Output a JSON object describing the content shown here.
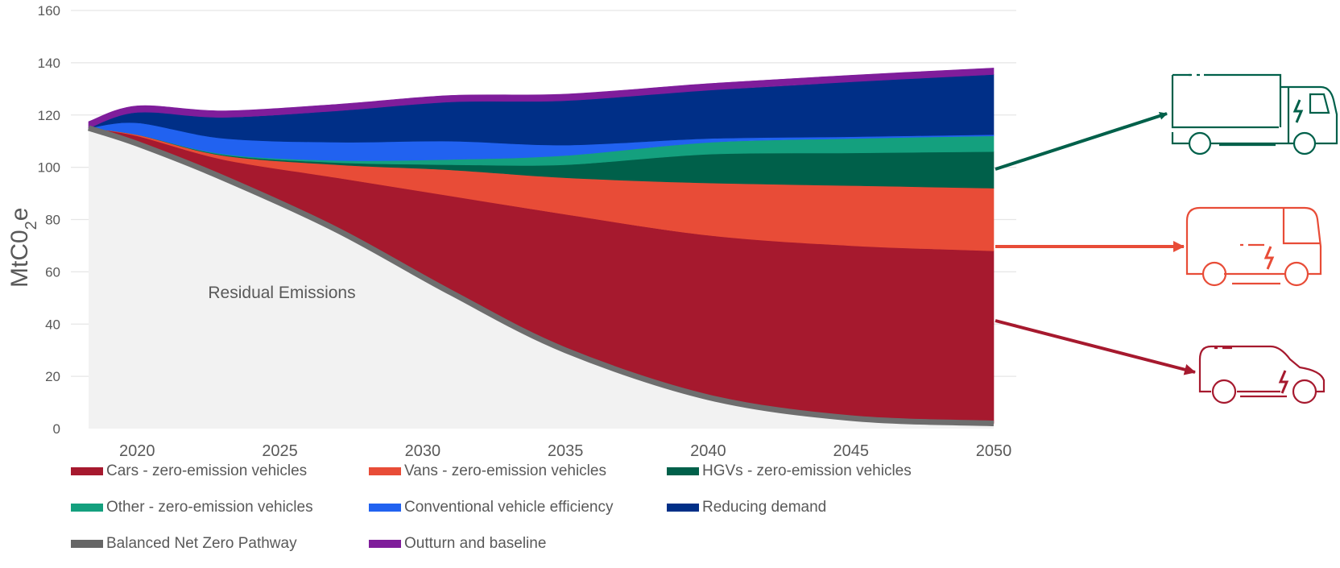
{
  "chart_data": {
    "type": "area",
    "stacked": true,
    "ylabel_main": "MtC0",
    "ylabel_sub": "2",
    "ylabel_tail": "e",
    "ylim": [
      0,
      160
    ],
    "xlim": [
      2018.3,
      2050
    ],
    "yticks": [
      0,
      20,
      40,
      60,
      80,
      100,
      120,
      140,
      160
    ],
    "xticks": [
      2020,
      2025,
      2030,
      2035,
      2040,
      2045,
      2050
    ],
    "grid": true,
    "legend_position": "bottom",
    "annotation": "Residual Emissions",
    "x": [
      2018.3,
      2020,
      2023,
      2027,
      2031,
      2035,
      2040,
      2045,
      2050
    ],
    "pathway": [
      115,
      109,
      96,
      76,
      52,
      30,
      12,
      4,
      2
    ],
    "series": [
      {
        "name": "Cars - zero-emission vehicles",
        "color": "#A6192E",
        "values": [
          0,
          3,
          7,
          20,
          37,
          52,
          62,
          66,
          66
        ]
      },
      {
        "name": "Vans - zero-emission vehicles",
        "color": "#E84C37",
        "values": [
          0,
          0.5,
          1.5,
          5,
          10,
          14,
          20,
          23,
          24
        ]
      },
      {
        "name": "HGVs - zero-emission vehicles",
        "color": "#00604A",
        "values": [
          0,
          0,
          0.3,
          0.8,
          2,
          5,
          11,
          12.5,
          14
        ]
      },
      {
        "name": "Other - zero-emission vehicles",
        "color": "#14A07E",
        "values": [
          0,
          0,
          0.3,
          0.8,
          2,
          3.5,
          4.5,
          5.5,
          6
        ]
      },
      {
        "name": "Conventional vehicle efficiency",
        "color": "#2162F0",
        "values": [
          0,
          4.5,
          6,
          7,
          7,
          4,
          1.5,
          0.7,
          0.5
        ]
      },
      {
        "name": "Reducing demand",
        "color": "#002F87",
        "values": [
          0,
          4,
          8,
          12,
          15,
          17,
          18.5,
          21,
          23
        ]
      },
      {
        "name": "Outturn and baseline",
        "color": "#7F1D9B",
        "values": [
          2.5,
          2.5,
          2.5,
          2.5,
          2.5,
          2.5,
          2.5,
          2.5,
          2.5
        ]
      }
    ],
    "legend": [
      {
        "name": "Cars - zero-emission vehicles",
        "color": "#A6192E"
      },
      {
        "name": "Vans - zero-emission vehicles",
        "color": "#E84C37"
      },
      {
        "name": "HGVs - zero-emission vehicles",
        "color": "#00604A"
      },
      {
        "name": "Other - zero-emission vehicles",
        "color": "#14A07E"
      },
      {
        "name": "Conventional vehicle efficiency",
        "color": "#2162F0"
      },
      {
        "name": "Reducing demand",
        "color": "#002F87"
      },
      {
        "name": "Balanced Net Zero Pathway",
        "color": "#666666"
      },
      {
        "name": "Outturn and baseline",
        "color": "#7F1D9B"
      }
    ],
    "callouts": [
      {
        "icon": "electric-truck-icon",
        "color": "#00604A"
      },
      {
        "icon": "electric-van-icon",
        "color": "#E84C37"
      },
      {
        "icon": "electric-car-icon",
        "color": "#A6192E"
      }
    ],
    "residual_fill": "#F2F2F2",
    "pathway_color": "#6E6E6E"
  }
}
